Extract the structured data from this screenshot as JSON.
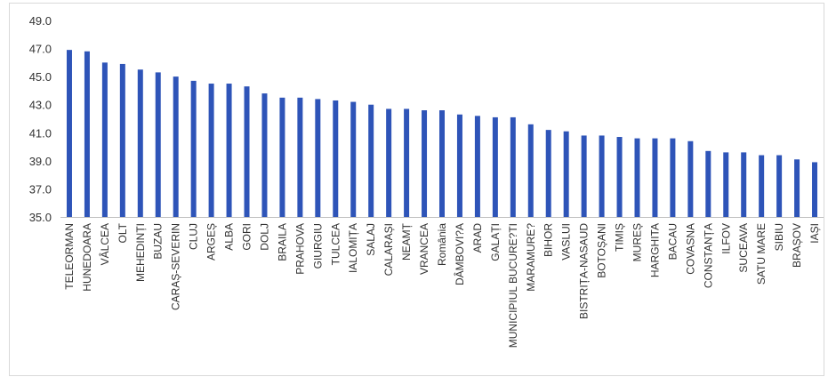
{
  "chart_data": {
    "type": "bar",
    "title": "",
    "xlabel": "",
    "ylabel": "",
    "ylim": [
      35.0,
      49.0
    ],
    "yticks": [
      "35.0",
      "37.0",
      "39.0",
      "41.0",
      "43.0",
      "45.0",
      "47.0",
      "49.0"
    ],
    "grid": false,
    "legend": "none",
    "bar_color": "#2e54b8",
    "categories": [
      "TELEORMAN",
      "HUNEDOARA",
      "VÂLCEA",
      "OLT",
      "MEHEDINȚI",
      "BUZAU",
      "CARAȘ-SEVERIN",
      "CLUJ",
      "ARGEȘ",
      "ALBA",
      "GORI",
      "DOLJ",
      "BRAILA",
      "PRAHOVA",
      "GIURGIU",
      "TULCEA",
      "IALOMIȚA",
      "SALAJ",
      "CALARAȘI",
      "NEAMȚ",
      "VRANCEA",
      "România",
      "DÂMBOVI?A",
      "ARAD",
      "GALAȚI",
      "MUNICIPIUL BUCURE?TI",
      "MARAMURE?",
      "BIHOR",
      "VASLUI",
      "BISTRIȚA-NASAUD",
      "BOTOȘANI",
      "TIMIȘ",
      "MUREȘ",
      "HARGHITA",
      "BACAU",
      "COVASNA",
      "CONSTANȚA",
      "ILFOV",
      "SUCEAVA",
      "SATU MARE",
      "SIBIU",
      "BRAȘOV",
      "IAȘI"
    ],
    "values": [
      46.9,
      46.8,
      46.0,
      45.9,
      45.5,
      45.3,
      45.0,
      44.7,
      44.5,
      44.5,
      44.3,
      43.8,
      43.5,
      43.5,
      43.4,
      43.3,
      43.2,
      43.0,
      42.7,
      42.7,
      42.6,
      42.6,
      42.3,
      42.2,
      42.1,
      42.1,
      41.6,
      41.2,
      41.1,
      40.8,
      40.8,
      40.7,
      40.6,
      40.6,
      40.6,
      40.4,
      39.7,
      39.6,
      39.6,
      39.4,
      39.4,
      39.1,
      38.9
    ]
  }
}
